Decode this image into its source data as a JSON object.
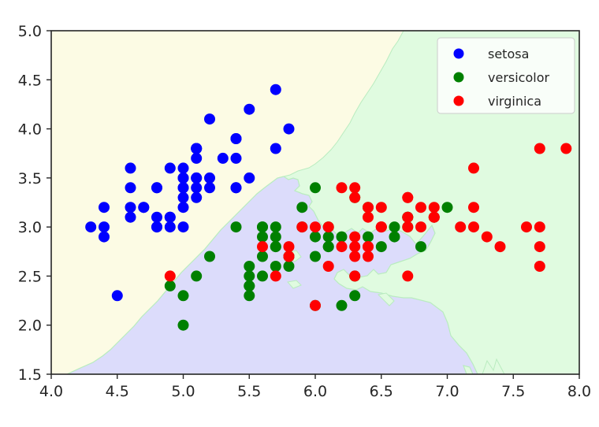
{
  "chart_data": {
    "type": "scatter",
    "title": "",
    "xlabel": "",
    "ylabel": "",
    "xlim": [
      4.0,
      8.0
    ],
    "ylim": [
      1.5,
      5.0
    ],
    "grid": false,
    "legend_position": "upper right",
    "x_ticks": [
      "4.0",
      "4.5",
      "5.0",
      "5.5",
      "6.0",
      "6.5",
      "7.0",
      "7.5",
      "8.0"
    ],
    "y_ticks": [
      "1.5",
      "2.0",
      "2.5",
      "3.0",
      "3.5",
      "4.0",
      "4.5",
      "5.0"
    ],
    "background_regions": [
      {
        "class": "setosa",
        "color": "#fcfbe4"
      },
      {
        "class": "versicolor",
        "color": "#dcdcfb"
      },
      {
        "class": "virginica",
        "color": "#e0fbe0"
      }
    ],
    "series": [
      {
        "name": "setosa",
        "color": "#0000ff",
        "points": [
          [
            5.1,
            3.5
          ],
          [
            4.9,
            3.0
          ],
          [
            4.7,
            3.2
          ],
          [
            4.6,
            3.1
          ],
          [
            5.0,
            3.6
          ],
          [
            5.4,
            3.9
          ],
          [
            4.6,
            3.4
          ],
          [
            5.0,
            3.4
          ],
          [
            4.4,
            2.9
          ],
          [
            4.9,
            3.1
          ],
          [
            5.4,
            3.7
          ],
          [
            4.8,
            3.4
          ],
          [
            4.8,
            3.0
          ],
          [
            4.3,
            3.0
          ],
          [
            5.8,
            4.0
          ],
          [
            5.7,
            4.4
          ],
          [
            5.4,
            3.9
          ],
          [
            5.1,
            3.5
          ],
          [
            5.7,
            3.8
          ],
          [
            5.1,
            3.8
          ],
          [
            5.4,
            3.4
          ],
          [
            5.1,
            3.7
          ],
          [
            4.6,
            3.6
          ],
          [
            5.1,
            3.3
          ],
          [
            4.8,
            3.4
          ],
          [
            5.0,
            3.0
          ],
          [
            5.0,
            3.4
          ],
          [
            5.2,
            3.5
          ],
          [
            5.2,
            3.4
          ],
          [
            4.7,
            3.2
          ],
          [
            4.8,
            3.1
          ],
          [
            5.4,
            3.4
          ],
          [
            5.2,
            4.1
          ],
          [
            5.5,
            4.2
          ],
          [
            4.9,
            3.1
          ],
          [
            5.0,
            3.2
          ],
          [
            5.5,
            3.5
          ],
          [
            4.9,
            3.6
          ],
          [
            4.4,
            3.0
          ],
          [
            5.1,
            3.4
          ],
          [
            5.0,
            3.5
          ],
          [
            4.5,
            2.3
          ],
          [
            4.4,
            3.2
          ],
          [
            5.0,
            3.5
          ],
          [
            5.1,
            3.8
          ],
          [
            4.8,
            3.0
          ],
          [
            5.1,
            3.8
          ],
          [
            4.6,
            3.2
          ],
          [
            5.3,
            3.7
          ],
          [
            5.0,
            3.3
          ]
        ]
      },
      {
        "name": "versicolor",
        "color": "#008000",
        "points": [
          [
            7.0,
            3.2
          ],
          [
            6.4,
            3.2
          ],
          [
            6.9,
            3.1
          ],
          [
            5.5,
            2.3
          ],
          [
            6.5,
            2.8
          ],
          [
            5.7,
            2.8
          ],
          [
            6.3,
            3.3
          ],
          [
            4.9,
            2.4
          ],
          [
            6.6,
            2.9
          ],
          [
            5.2,
            2.7
          ],
          [
            5.0,
            2.0
          ],
          [
            5.9,
            3.0
          ],
          [
            6.0,
            2.2
          ],
          [
            6.1,
            2.9
          ],
          [
            5.6,
            2.9
          ],
          [
            6.7,
            3.1
          ],
          [
            5.6,
            3.0
          ],
          [
            5.8,
            2.7
          ],
          [
            6.2,
            2.2
          ],
          [
            5.6,
            2.5
          ],
          [
            5.9,
            3.2
          ],
          [
            6.1,
            2.8
          ],
          [
            6.3,
            2.5
          ],
          [
            6.1,
            2.8
          ],
          [
            6.4,
            2.9
          ],
          [
            6.6,
            3.0
          ],
          [
            6.8,
            2.8
          ],
          [
            6.7,
            3.0
          ],
          [
            6.0,
            2.9
          ],
          [
            5.7,
            2.6
          ],
          [
            5.5,
            2.4
          ],
          [
            5.5,
            2.4
          ],
          [
            5.8,
            2.7
          ],
          [
            6.0,
            2.7
          ],
          [
            5.4,
            3.0
          ],
          [
            6.0,
            3.4
          ],
          [
            6.7,
            3.1
          ],
          [
            6.3,
            2.3
          ],
          [
            5.6,
            3.0
          ],
          [
            5.5,
            2.5
          ],
          [
            5.5,
            2.6
          ],
          [
            6.1,
            3.0
          ],
          [
            5.8,
            2.6
          ],
          [
            5.0,
            2.3
          ],
          [
            5.6,
            2.7
          ],
          [
            5.7,
            3.0
          ],
          [
            5.7,
            2.9
          ],
          [
            6.2,
            2.9
          ],
          [
            5.1,
            2.5
          ],
          [
            5.7,
            2.8
          ]
        ]
      },
      {
        "name": "virginica",
        "color": "#ff0000",
        "points": [
          [
            6.3,
            3.3
          ],
          [
            5.8,
            2.7
          ],
          [
            7.1,
            3.0
          ],
          [
            6.3,
            2.9
          ],
          [
            6.5,
            3.0
          ],
          [
            7.6,
            3.0
          ],
          [
            4.9,
            2.5
          ],
          [
            7.3,
            2.9
          ],
          [
            6.7,
            2.5
          ],
          [
            7.2,
            3.6
          ],
          [
            6.5,
            3.2
          ],
          [
            6.4,
            2.7
          ],
          [
            6.8,
            3.0
          ],
          [
            5.7,
            2.5
          ],
          [
            5.8,
            2.8
          ],
          [
            6.4,
            3.2
          ],
          [
            6.5,
            3.0
          ],
          [
            7.7,
            3.8
          ],
          [
            7.7,
            2.6
          ],
          [
            6.0,
            2.2
          ],
          [
            6.9,
            3.2
          ],
          [
            5.6,
            2.8
          ],
          [
            7.7,
            2.8
          ],
          [
            6.3,
            2.7
          ],
          [
            6.7,
            3.3
          ],
          [
            7.2,
            3.2
          ],
          [
            6.2,
            2.8
          ],
          [
            6.1,
            3.0
          ],
          [
            6.4,
            2.8
          ],
          [
            7.2,
            3.0
          ],
          [
            7.4,
            2.8
          ],
          [
            7.9,
            3.8
          ],
          [
            6.4,
            2.8
          ],
          [
            6.3,
            2.8
          ],
          [
            6.1,
            2.6
          ],
          [
            7.7,
            3.0
          ],
          [
            6.3,
            3.4
          ],
          [
            6.4,
            3.1
          ],
          [
            6.0,
            3.0
          ],
          [
            6.9,
            3.1
          ],
          [
            6.7,
            3.1
          ],
          [
            6.9,
            3.1
          ],
          [
            5.8,
            2.7
          ],
          [
            6.8,
            3.2
          ],
          [
            6.7,
            3.3
          ],
          [
            6.7,
            3.0
          ],
          [
            6.3,
            2.5
          ],
          [
            6.5,
            3.0
          ],
          [
            6.2,
            3.4
          ],
          [
            5.9,
            3.0
          ]
        ]
      }
    ]
  },
  "legend": {
    "items": [
      {
        "label": "setosa",
        "color": "#0000ff"
      },
      {
        "label": "versicolor",
        "color": "#008000"
      },
      {
        "label": "virginica",
        "color": "#ff0000"
      }
    ]
  }
}
